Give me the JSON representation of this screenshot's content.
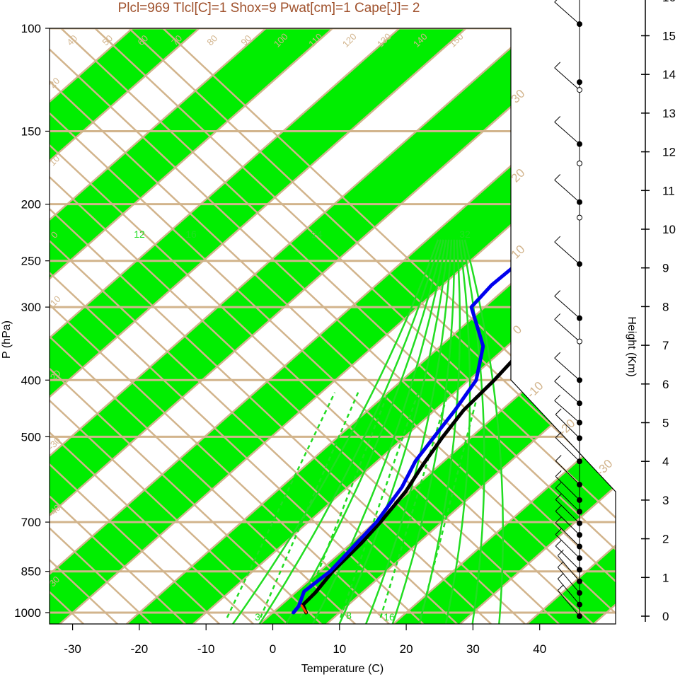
{
  "title": "Plcl=969 Tlcl[C]=1 Shox=9 Pwat[cm]=1 Cape[J]= 2",
  "colors": {
    "title": "#a0522d",
    "isotherm_band": "#00ee00",
    "grid": "#d2b48c",
    "mixing_ratio": "#22dd22",
    "temperature": "#000000",
    "dewpoint": "#0000ee",
    "parcel": "#ff4500"
  },
  "chart_data": {
    "type": "line",
    "title": "Plcl=969 Tlcl[C]=1 Shox=9 Pwat[cm]=1 Cape[J]= 2",
    "xlabel": "Temperature (C)",
    "ylabel": "P (hPa)",
    "y2label": "Height (Km)",
    "xlim": [
      -33,
      52
    ],
    "ylim": [
      1050,
      100
    ],
    "y_scale": "log",
    "x_ticks": [
      "-30",
      "-20",
      "-10",
      "0",
      "10",
      "20",
      "30",
      "40"
    ],
    "x_tick_values": [
      -30,
      -20,
      -10,
      0,
      10,
      20,
      30,
      40
    ],
    "y_ticks": [
      "100",
      "150",
      "200",
      "250",
      "300",
      "400",
      "500",
      "700",
      "850",
      "1000"
    ],
    "y_tick_values": [
      100,
      150,
      200,
      250,
      300,
      400,
      500,
      700,
      850,
      1000
    ],
    "height_ticks": [
      "0",
      "1",
      "2",
      "3",
      "4",
      "5",
      "6",
      "7",
      "8",
      "9",
      "10",
      "11",
      "12",
      "13",
      "14",
      "15",
      "16"
    ],
    "height_tick_values": [
      0,
      1,
      2,
      3,
      4,
      5,
      6,
      7,
      8,
      9,
      10,
      11,
      12,
      13,
      14,
      15,
      16
    ],
    "skewed_isotherm_labels": [
      "30",
      "20",
      "10",
      "0",
      "-10",
      "-20",
      "-30"
    ],
    "dry_adiabat_labels": [
      "-40",
      "-30",
      "-20",
      "-10",
      "0",
      "10",
      "20",
      "30",
      "40",
      "50",
      "60",
      "70",
      "80",
      "90",
      "100",
      "110",
      "120",
      "130",
      "140",
      "150",
      "160"
    ],
    "moist_adiabat_labels": [
      "12",
      "16",
      "24",
      "32"
    ],
    "mixing_ratio_labels": [
      "3",
      "8",
      "16"
    ],
    "series": [
      {
        "name": "Temperature",
        "points": [
          [
            5.0,
            1000
          ],
          [
            3.2,
            970
          ],
          [
            3.0,
            925
          ],
          [
            2.0,
            850
          ],
          [
            1.5,
            760
          ],
          [
            0.8,
            700
          ],
          [
            -0.6,
            620
          ],
          [
            -2.5,
            560
          ],
          [
            -4.3,
            500
          ],
          [
            -5.7,
            450
          ],
          [
            -6.2,
            400
          ],
          [
            -7.0,
            360
          ],
          [
            -8.7,
            320
          ],
          [
            -10.5,
            290
          ],
          [
            -11.3,
            265
          ],
          [
            -10.9,
            245
          ],
          [
            -9.2,
            225
          ],
          [
            -6.3,
            205
          ],
          [
            -3.1,
            190
          ],
          [
            1.0,
            173
          ],
          [
            4.6,
            160
          ],
          [
            7.9,
            148
          ],
          [
            11.0,
            130
          ],
          [
            13.6,
            115
          ],
          [
            15.4,
            106
          ]
        ]
      },
      {
        "name": "Dewpoint",
        "points": [
          [
            3.1,
            1000
          ],
          [
            2.8,
            975
          ],
          [
            1.1,
            920
          ],
          [
            1.6,
            850
          ],
          [
            0.8,
            760
          ],
          [
            0.2,
            700
          ],
          [
            -1.9,
            610
          ],
          [
            -4.3,
            550
          ],
          [
            -5.6,
            500
          ],
          [
            -7.0,
            450
          ],
          [
            -8.9,
            400
          ],
          [
            -13.6,
            350
          ],
          [
            -22.0,
            300
          ],
          [
            -22.7,
            275
          ],
          [
            -22.4,
            250
          ],
          [
            -21.7,
            230
          ],
          [
            -18.8,
            210
          ],
          [
            -19.3,
            190
          ],
          [
            -22.6,
            175
          ],
          [
            -16.2,
            150
          ],
          [
            -7.7,
            108
          ]
        ]
      },
      {
        "name": "Parcel",
        "points": [
          [
            5.0,
            1000
          ],
          [
            3.1,
            972
          ]
        ]
      }
    ],
    "wind_barb_heights": [
      0.0,
      0.3,
      0.6,
      0.9,
      1.2,
      1.5,
      1.8,
      2.1,
      2.4,
      2.7,
      3.0,
      3.4,
      4.0,
      4.6,
      5.0,
      5.5,
      6.1,
      7.1,
      7.7,
      9.1,
      10.7,
      12.2,
      13.6,
      15.3,
      16.2
    ],
    "filled_height_markers": [
      0.0,
      0.3,
      0.6,
      0.9,
      1.2,
      1.5,
      1.8,
      2.1,
      2.4,
      2.7,
      3.0,
      3.4,
      4.0,
      4.6,
      5.0,
      5.5,
      6.1,
      7.7,
      9.1,
      10.7,
      12.2,
      13.8,
      15.3
    ],
    "open_height_markers": [
      7.1,
      10.3,
      11.7,
      13.6,
      16.2
    ]
  }
}
